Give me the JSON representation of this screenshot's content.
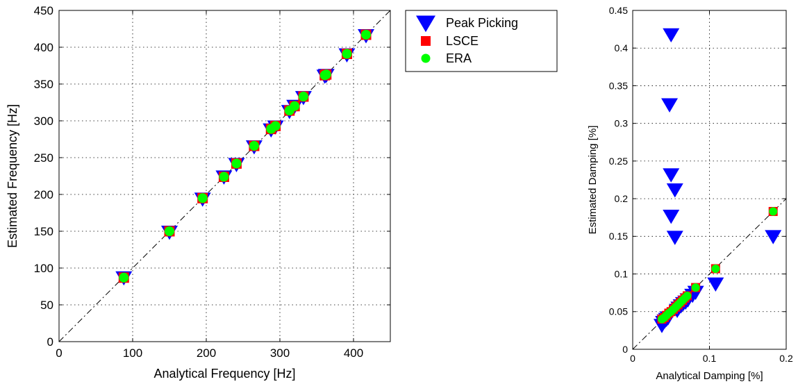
{
  "chart_data": [
    {
      "type": "scatter",
      "xlabel": "Analytical Frequency [Hz]",
      "ylabel": "Estimated Frequency [Hz]",
      "xlim": [
        0,
        450
      ],
      "ylim": [
        0,
        450
      ],
      "xticks": [
        0,
        100,
        200,
        300,
        400
      ],
      "yticks": [
        0,
        50,
        100,
        150,
        200,
        250,
        300,
        350,
        400,
        450
      ],
      "grid": true,
      "reference_line": "y = x",
      "series": [
        {
          "name": "Peak Picking",
          "marker": "triangle-down",
          "color": "#0000ff",
          "points": [
            [
              88,
              87
            ],
            [
              150,
              149
            ],
            [
              195,
              194
            ],
            [
              224,
              224
            ],
            [
              241,
              241
            ],
            [
              265,
              265
            ],
            [
              288,
              288
            ],
            [
              294,
              292
            ],
            [
              313,
              313
            ],
            [
              320,
              320
            ],
            [
              332,
              332
            ],
            [
              361,
              361
            ],
            [
              363,
              362
            ],
            [
              391,
              390
            ],
            [
              417,
              416
            ]
          ]
        },
        {
          "name": "LSCE",
          "marker": "square",
          "color": "#ff0000",
          "points": [
            [
              88,
              87
            ],
            [
              150,
              150
            ],
            [
              195,
              195
            ],
            [
              224,
              224
            ],
            [
              241,
              242
            ],
            [
              265,
              266
            ],
            [
              288,
              289
            ],
            [
              294,
              293
            ],
            [
              313,
              314
            ],
            [
              320,
              320
            ],
            [
              332,
              333
            ],
            [
              361,
              362
            ],
            [
              363,
              363
            ],
            [
              391,
              391
            ],
            [
              417,
              417
            ]
          ]
        },
        {
          "name": "ERA",
          "marker": "circle",
          "color": "#00ff00",
          "points": [
            [
              88,
              87
            ],
            [
              150,
              150
            ],
            [
              195,
              195
            ],
            [
              224,
              224
            ],
            [
              241,
              242
            ],
            [
              265,
              266
            ],
            [
              288,
              289
            ],
            [
              294,
              293
            ],
            [
              313,
              314
            ],
            [
              320,
              320
            ],
            [
              332,
              333
            ],
            [
              361,
              362
            ],
            [
              363,
              363
            ],
            [
              391,
              391
            ],
            [
              417,
              417
            ]
          ]
        }
      ]
    },
    {
      "type": "scatter",
      "xlabel": "Analytical Damping [%]",
      "ylabel": "Estimated Damping [%]",
      "xlim": [
        0,
        0.2
      ],
      "ylim": [
        0,
        0.45
      ],
      "xticks": [
        "0",
        "0.1",
        "0.2"
      ],
      "yticks": [
        "0",
        "0.05",
        "0.1",
        "0.15",
        "0.2",
        "0.25",
        "0.3",
        "0.35",
        "0.4",
        "0.45"
      ],
      "grid": true,
      "reference_line": "y = x",
      "series": [
        {
          "name": "Peak Picking",
          "marker": "triangle-down",
          "color": "#0000ff",
          "points": [
            [
              0.038,
              0.032
            ],
            [
              0.04,
              0.036
            ],
            [
              0.042,
              0.038
            ],
            [
              0.044,
              0.04
            ],
            [
              0.046,
              0.042
            ],
            [
              0.048,
              0.325
            ],
            [
              0.05,
              0.418
            ],
            [
              0.05,
              0.232
            ],
            [
              0.05,
              0.177
            ],
            [
              0.055,
              0.212
            ],
            [
              0.055,
              0.149
            ],
            [
              0.058,
              0.052
            ],
            [
              0.06,
              0.055
            ],
            [
              0.063,
              0.058
            ],
            [
              0.066,
              0.061
            ],
            [
              0.069,
              0.063
            ],
            [
              0.072,
              0.066
            ],
            [
              0.078,
              0.072
            ],
            [
              0.082,
              0.076
            ],
            [
              0.108,
              0.087
            ],
            [
              0.183,
              0.15
            ]
          ]
        },
        {
          "name": "LSCE",
          "marker": "square",
          "color": "#ff0000",
          "points": [
            [
              0.038,
              0.04
            ],
            [
              0.041,
              0.042
            ],
            [
              0.044,
              0.045
            ],
            [
              0.047,
              0.048
            ],
            [
              0.05,
              0.05
            ],
            [
              0.053,
              0.053
            ],
            [
              0.056,
              0.056
            ],
            [
              0.059,
              0.059
            ],
            [
              0.062,
              0.062
            ],
            [
              0.065,
              0.065
            ],
            [
              0.068,
              0.068
            ],
            [
              0.071,
              0.071
            ],
            [
              0.082,
              0.082
            ],
            [
              0.108,
              0.107
            ],
            [
              0.183,
              0.183
            ]
          ]
        },
        {
          "name": "ERA",
          "marker": "circle",
          "color": "#00ff00",
          "points": [
            [
              0.038,
              0.04
            ],
            [
              0.041,
              0.042
            ],
            [
              0.044,
              0.045
            ],
            [
              0.047,
              0.048
            ],
            [
              0.05,
              0.05
            ],
            [
              0.053,
              0.053
            ],
            [
              0.056,
              0.056
            ],
            [
              0.059,
              0.059
            ],
            [
              0.062,
              0.062
            ],
            [
              0.065,
              0.065
            ],
            [
              0.068,
              0.068
            ],
            [
              0.071,
              0.071
            ],
            [
              0.082,
              0.082
            ],
            [
              0.108,
              0.107
            ],
            [
              0.183,
              0.183
            ]
          ]
        }
      ]
    }
  ],
  "legend": {
    "placement": "right of left plot",
    "entries": [
      "Peak Picking",
      "LSCE",
      "ERA"
    ]
  }
}
